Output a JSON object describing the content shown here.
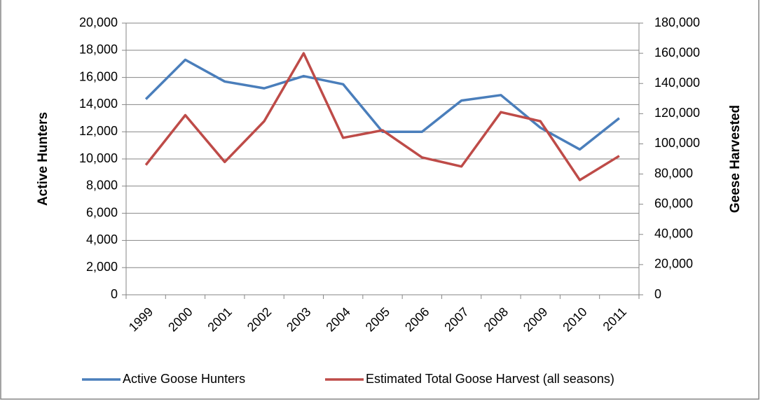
{
  "chart_data": {
    "type": "line",
    "categories": [
      "1999",
      "2000",
      "2001",
      "2002",
      "2003",
      "2004",
      "2005",
      "2006",
      "2007",
      "2008",
      "2009",
      "2010",
      "2011"
    ],
    "y_label": "Active Hunters",
    "y2_label": "Geese Harvested",
    "series": [
      {
        "name": "Active Goose Hunters",
        "color": "#4a7ebb",
        "values": [
          14400,
          17300,
          15700,
          15200,
          16100,
          15500,
          12000,
          12000,
          14300,
          14700,
          12300,
          10700,
          13000
        ]
      },
      {
        "name": "Estimated Total Goose Harvest (all seasons)",
        "color": "#be4b48",
        "axis": "y2",
        "values": [
          86000,
          119000,
          88000,
          115000,
          160000,
          104000,
          109000,
          91000,
          85000,
          121000,
          115000,
          76000,
          92000
        ]
      }
    ],
    "ylim": [
      0,
      20000
    ],
    "yticks": [
      0,
      {
        "value": 2000,
        "label": "2,000"
      },
      {
        "value": 4000,
        "label": "4,000"
      },
      {
        "value": 6000,
        "label": "6,000"
      },
      {
        "value": 8000,
        "label": "8,000"
      },
      {
        "value": 10000,
        "label": "10,000"
      },
      {
        "value": 12000,
        "label": "12,000"
      },
      {
        "value": 14000,
        "label": "14,000"
      },
      {
        "value": 16000,
        "label": "16,000"
      },
      {
        "value": 18000,
        "label": "18,000"
      },
      {
        "value": 20000,
        "label": "20,000"
      }
    ],
    "y2lim": [
      0,
      180000
    ],
    "y2ticks": [
      0,
      {
        "value": 20000,
        "label": "20,000"
      },
      {
        "value": 40000,
        "label": "40,000"
      },
      {
        "value": 60000,
        "label": "60,000"
      },
      {
        "value": 80000,
        "label": "80,000"
      },
      {
        "value": 100000,
        "label": "100,000"
      },
      {
        "value": 120000,
        "label": "120,000"
      },
      {
        "value": 140000,
        "label": "140,000"
      },
      {
        "value": 160000,
        "label": "160,000"
      },
      {
        "value": 180000,
        "label": "180,000"
      }
    ],
    "grid": true,
    "legend": "bottom"
  }
}
